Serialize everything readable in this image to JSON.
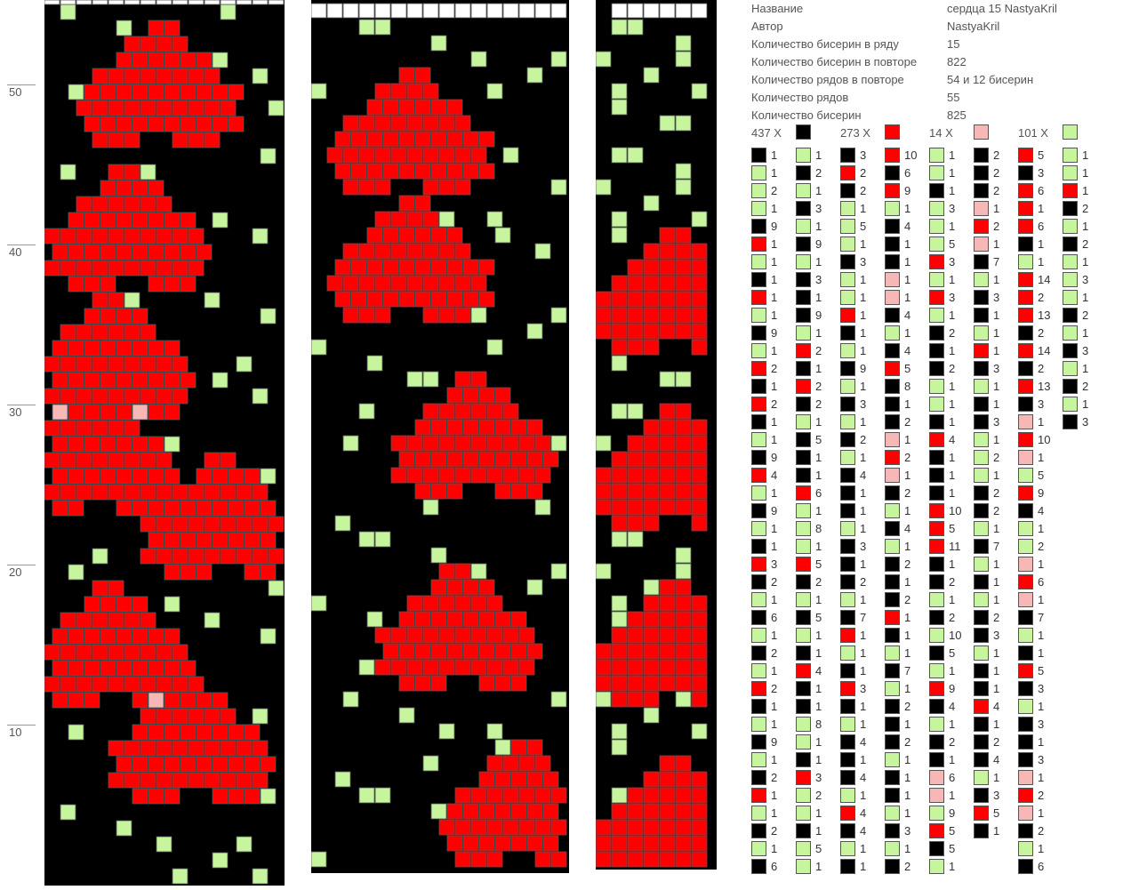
{
  "colors": {
    "X": "#000000",
    "R": "#ff0000",
    "P": "#f7b7b7",
    "G": "#c6f59e",
    "W": "#ffffff",
    "grid": "#555555"
  },
  "ruler": [
    "50",
    "40",
    "30",
    "20",
    "10"
  ],
  "info": [
    {
      "key": "Название",
      "value": "сердца 15 NastyaKril"
    },
    {
      "key": "Автор",
      "value": "NastyaKril"
    },
    {
      "key": "Количество бисерин в ряду",
      "value": "15"
    },
    {
      "key": "Количество бисерин в повторе",
      "value": "822"
    },
    {
      "key": "Количество рядов в повторе",
      "value": "54 и 12 бисерин"
    },
    {
      "key": "Количество рядов",
      "value": "55"
    },
    {
      "key": "Количество бисерин",
      "value": "825"
    }
  ],
  "legend": [
    {
      "label": "437 X",
      "color": "X"
    },
    {
      "label": "273 X",
      "color": "R"
    },
    {
      "label": "14 X",
      "color": "P"
    },
    {
      "label": "101 X",
      "color": "G"
    }
  ],
  "sequence_columns": [
    [
      [
        "X",
        "1"
      ],
      [
        "G",
        "1"
      ],
      [
        "G",
        "2"
      ],
      [
        "G",
        "1"
      ],
      [
        "X",
        "9"
      ],
      [
        "R",
        "1"
      ],
      [
        "G",
        "1"
      ],
      [
        "X",
        "1"
      ],
      [
        "R",
        "1"
      ],
      [
        "G",
        "1"
      ],
      [
        "X",
        "9"
      ],
      [
        "G",
        "1"
      ],
      [
        "R",
        "2"
      ],
      [
        "X",
        "1"
      ],
      [
        "R",
        "2"
      ],
      [
        "X",
        "1"
      ],
      [
        "G",
        "1"
      ],
      [
        "X",
        "9"
      ],
      [
        "R",
        "4"
      ],
      [
        "G",
        "1"
      ],
      [
        "X",
        "9"
      ],
      [
        "G",
        "1"
      ],
      [
        "X",
        "1"
      ],
      [
        "R",
        "3"
      ],
      [
        "X",
        "2"
      ],
      [
        "G",
        "1"
      ],
      [
        "X",
        "6"
      ],
      [
        "G",
        "1"
      ],
      [
        "X",
        "2"
      ],
      [
        "G",
        "1"
      ],
      [
        "R",
        "2"
      ],
      [
        "X",
        "1"
      ],
      [
        "G",
        "1"
      ],
      [
        "X",
        "9"
      ],
      [
        "G",
        "1"
      ],
      [
        "X",
        "2"
      ],
      [
        "R",
        "1"
      ],
      [
        "G",
        "1"
      ],
      [
        "X",
        "2"
      ],
      [
        "G",
        "1"
      ],
      [
        "X",
        "6"
      ]
    ],
    [
      [
        "G",
        "1"
      ],
      [
        "X",
        "2"
      ],
      [
        "G",
        "1"
      ],
      [
        "X",
        "3"
      ],
      [
        "G",
        "1"
      ],
      [
        "X",
        "9"
      ],
      [
        "G",
        "1"
      ],
      [
        "X",
        "3"
      ],
      [
        "X",
        "1"
      ],
      [
        "X",
        "9"
      ],
      [
        "G",
        "1"
      ],
      [
        "R",
        "2"
      ],
      [
        "X",
        "1"
      ],
      [
        "R",
        "2"
      ],
      [
        "X",
        "2"
      ],
      [
        "G",
        "1"
      ],
      [
        "X",
        "5"
      ],
      [
        "X",
        "1"
      ],
      [
        "X",
        "1"
      ],
      [
        "R",
        "6"
      ],
      [
        "G",
        "1"
      ],
      [
        "G",
        "8"
      ],
      [
        "G",
        "1"
      ],
      [
        "R",
        "5"
      ],
      [
        "X",
        "2"
      ],
      [
        "G",
        "1"
      ],
      [
        "X",
        "5"
      ],
      [
        "G",
        "1"
      ],
      [
        "X",
        "1"
      ],
      [
        "R",
        "4"
      ],
      [
        "X",
        "1"
      ],
      [
        "X",
        "1"
      ],
      [
        "G",
        "8"
      ],
      [
        "G",
        "1"
      ],
      [
        "X",
        "1"
      ],
      [
        "R",
        "3"
      ],
      [
        "G",
        "2"
      ],
      [
        "G",
        "1"
      ],
      [
        "X",
        "1"
      ],
      [
        "G",
        "5"
      ],
      [
        "G",
        "1"
      ]
    ],
    [
      [
        "X",
        "3"
      ],
      [
        "R",
        "2"
      ],
      [
        "X",
        "2"
      ],
      [
        "G",
        "1"
      ],
      [
        "G",
        "5"
      ],
      [
        "G",
        "1"
      ],
      [
        "X",
        "3"
      ],
      [
        "G",
        "1"
      ],
      [
        "G",
        "1"
      ],
      [
        "R",
        "1"
      ],
      [
        "X",
        "1"
      ],
      [
        "G",
        "1"
      ],
      [
        "X",
        "9"
      ],
      [
        "G",
        "1"
      ],
      [
        "X",
        "3"
      ],
      [
        "G",
        "1"
      ],
      [
        "X",
        "2"
      ],
      [
        "G",
        "1"
      ],
      [
        "X",
        "4"
      ],
      [
        "X",
        "1"
      ],
      [
        "X",
        "1"
      ],
      [
        "G",
        "1"
      ],
      [
        "X",
        "3"
      ],
      [
        "X",
        "1"
      ],
      [
        "X",
        "2"
      ],
      [
        "G",
        "1"
      ],
      [
        "X",
        "7"
      ],
      [
        "R",
        "1"
      ],
      [
        "G",
        "1"
      ],
      [
        "X",
        "1"
      ],
      [
        "R",
        "3"
      ],
      [
        "X",
        "1"
      ],
      [
        "G",
        "1"
      ],
      [
        "X",
        "4"
      ],
      [
        "X",
        "1"
      ],
      [
        "X",
        "4"
      ],
      [
        "G",
        "1"
      ],
      [
        "R",
        "4"
      ],
      [
        "X",
        "4"
      ],
      [
        "G",
        "1"
      ],
      [
        "X",
        "1"
      ]
    ],
    [
      [
        "R",
        "10"
      ],
      [
        "X",
        "6"
      ],
      [
        "R",
        "9"
      ],
      [
        "G",
        "1"
      ],
      [
        "X",
        "4"
      ],
      [
        "X",
        "1"
      ],
      [
        "X",
        "1"
      ],
      [
        "P",
        "1"
      ],
      [
        "P",
        "1"
      ],
      [
        "X",
        "4"
      ],
      [
        "G",
        "1"
      ],
      [
        "X",
        "4"
      ],
      [
        "R",
        "5"
      ],
      [
        "X",
        "8"
      ],
      [
        "X",
        "1"
      ],
      [
        "X",
        "2"
      ],
      [
        "P",
        "1"
      ],
      [
        "R",
        "2"
      ],
      [
        "P",
        "1"
      ],
      [
        "X",
        "2"
      ],
      [
        "G",
        "1"
      ],
      [
        "X",
        "4"
      ],
      [
        "G",
        "1"
      ],
      [
        "X",
        "2"
      ],
      [
        "X",
        "1"
      ],
      [
        "X",
        "2"
      ],
      [
        "R",
        "1"
      ],
      [
        "X",
        "1"
      ],
      [
        "G",
        "1"
      ],
      [
        "X",
        "7"
      ],
      [
        "G",
        "1"
      ],
      [
        "X",
        "2"
      ],
      [
        "X",
        "1"
      ],
      [
        "X",
        "2"
      ],
      [
        "G",
        "1"
      ],
      [
        "X",
        "1"
      ],
      [
        "X",
        "1"
      ],
      [
        "G",
        "1"
      ],
      [
        "X",
        "3"
      ],
      [
        "G",
        "1"
      ],
      [
        "X",
        "2"
      ]
    ],
    [
      [
        "G",
        "1"
      ],
      [
        "G",
        "1"
      ],
      [
        "X",
        "1"
      ],
      [
        "G",
        "3"
      ],
      [
        "G",
        "1"
      ],
      [
        "G",
        "5"
      ],
      [
        "R",
        "3"
      ],
      [
        "G",
        "1"
      ],
      [
        "R",
        "3"
      ],
      [
        "G",
        "1"
      ],
      [
        "X",
        "2"
      ],
      [
        "X",
        "1"
      ],
      [
        "X",
        "2"
      ],
      [
        "G",
        "1"
      ],
      [
        "G",
        "1"
      ],
      [
        "X",
        "1"
      ],
      [
        "R",
        "4"
      ],
      [
        "X",
        "1"
      ],
      [
        "X",
        "1"
      ],
      [
        "X",
        "1"
      ],
      [
        "R",
        "10"
      ],
      [
        "R",
        "5"
      ],
      [
        "R",
        "11"
      ],
      [
        "X",
        "1"
      ],
      [
        "X",
        "2"
      ],
      [
        "G",
        "1"
      ],
      [
        "X",
        "2"
      ],
      [
        "G",
        "10"
      ],
      [
        "X",
        "5"
      ],
      [
        "G",
        "1"
      ],
      [
        "R",
        "9"
      ],
      [
        "X",
        "4"
      ],
      [
        "G",
        "1"
      ],
      [
        "X",
        "2"
      ],
      [
        "X",
        "1"
      ],
      [
        "P",
        "6"
      ],
      [
        "P",
        "1"
      ],
      [
        "G",
        "9"
      ],
      [
        "R",
        "5"
      ],
      [
        "X",
        "5"
      ],
      [
        "G",
        "1"
      ]
    ],
    [
      [
        "X",
        "2"
      ],
      [
        "X",
        "2"
      ],
      [
        "X",
        "2"
      ],
      [
        "P",
        "1"
      ],
      [
        "R",
        "2"
      ],
      [
        "P",
        "1"
      ],
      [
        "X",
        "7"
      ],
      [
        "G",
        "1"
      ],
      [
        "X",
        "3"
      ],
      [
        "X",
        "1"
      ],
      [
        "G",
        "1"
      ],
      [
        "R",
        "1"
      ],
      [
        "X",
        "3"
      ],
      [
        "G",
        "1"
      ],
      [
        "X",
        "1"
      ],
      [
        "X",
        "3"
      ],
      [
        "G",
        "1"
      ],
      [
        "G",
        "2"
      ],
      [
        "G",
        "1"
      ],
      [
        "X",
        "2"
      ],
      [
        "X",
        "2"
      ],
      [
        "G",
        "1"
      ],
      [
        "X",
        "7"
      ],
      [
        "G",
        "1"
      ],
      [
        "X",
        "1"
      ],
      [
        "G",
        "1"
      ],
      [
        "X",
        "2"
      ],
      [
        "X",
        "3"
      ],
      [
        "G",
        "1"
      ],
      [
        "X",
        "1"
      ],
      [
        "X",
        "1"
      ],
      [
        "R",
        "4"
      ],
      [
        "X",
        "1"
      ],
      [
        "X",
        "2"
      ],
      [
        "X",
        "4"
      ],
      [
        "G",
        "1"
      ],
      [
        "X",
        "3"
      ],
      [
        "R",
        "5"
      ],
      [
        "X",
        "1"
      ]
    ],
    [
      [
        "R",
        "5"
      ],
      [
        "X",
        "3"
      ],
      [
        "R",
        "6"
      ],
      [
        "R",
        "1"
      ],
      [
        "R",
        "6"
      ],
      [
        "X",
        "1"
      ],
      [
        "G",
        "1"
      ],
      [
        "R",
        "14"
      ],
      [
        "R",
        "2"
      ],
      [
        "R",
        "13"
      ],
      [
        "X",
        "2"
      ],
      [
        "R",
        "14"
      ],
      [
        "X",
        "2"
      ],
      [
        "R",
        "13"
      ],
      [
        "X",
        "3"
      ],
      [
        "P",
        "1"
      ],
      [
        "R",
        "10"
      ],
      [
        "P",
        "1"
      ],
      [
        "G",
        "5"
      ],
      [
        "R",
        "9"
      ],
      [
        "X",
        "4"
      ],
      [
        "G",
        "1"
      ],
      [
        "G",
        "2"
      ],
      [
        "P",
        "1"
      ],
      [
        "R",
        "6"
      ],
      [
        "P",
        "1"
      ],
      [
        "X",
        "7"
      ],
      [
        "G",
        "1"
      ],
      [
        "X",
        "1"
      ],
      [
        "R",
        "5"
      ],
      [
        "X",
        "3"
      ],
      [
        "G",
        "1"
      ],
      [
        "X",
        "3"
      ],
      [
        "X",
        "1"
      ],
      [
        "X",
        "3"
      ],
      [
        "P",
        "1"
      ],
      [
        "R",
        "2"
      ],
      [
        "P",
        "1"
      ],
      [
        "X",
        "2"
      ],
      [
        "G",
        "1"
      ],
      [
        "X",
        "6"
      ]
    ],
    [
      [
        "G",
        "1"
      ],
      [
        "G",
        "1"
      ],
      [
        "R",
        "1"
      ],
      [
        "X",
        "2"
      ],
      [
        "G",
        "1"
      ],
      [
        "X",
        "2"
      ],
      [
        "G",
        "1"
      ],
      [
        "G",
        "3"
      ],
      [
        "G",
        "1"
      ],
      [
        "X",
        "2"
      ],
      [
        "G",
        "1"
      ],
      [
        "X",
        "3"
      ],
      [
        "G",
        "1"
      ],
      [
        "X",
        "2"
      ],
      [
        "G",
        "1"
      ],
      [
        "X",
        "3"
      ]
    ]
  ]
}
